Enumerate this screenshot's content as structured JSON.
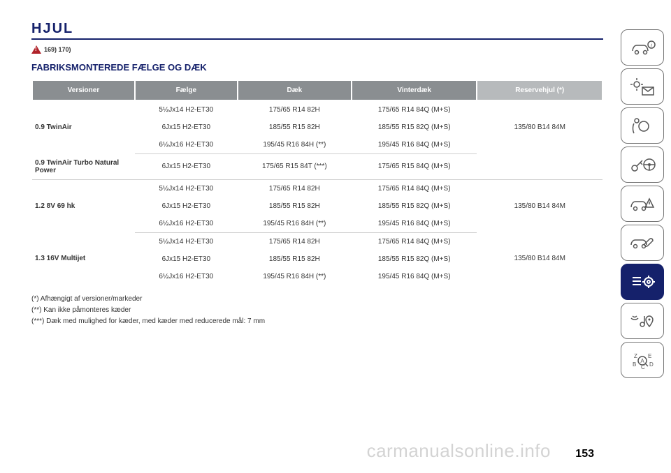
{
  "colors": {
    "primary": "#15216b",
    "header_bg": "#8a8e91",
    "header_bg_light": "#b7babc",
    "header_text": "#ffffff",
    "body_text": "#333333",
    "warn": "#b0232a",
    "divider": "#cfcfcf",
    "watermark": "rgba(130,130,130,0.35)"
  },
  "page_title": "HJUL",
  "warn_refs": "169) 170)",
  "section_heading": "FABRIKSMONTEREDE FÆLGE OG DÆK",
  "table": {
    "columns": [
      {
        "label": "Versioner",
        "width": "18%"
      },
      {
        "label": "Fælge",
        "width": "18%"
      },
      {
        "label": "Dæk",
        "width": "20%"
      },
      {
        "label": "Vinterdæk",
        "width": "22%"
      },
      {
        "label": "Reservehjul (*)",
        "width": "22%",
        "light": true
      }
    ],
    "groups": [
      {
        "version": "0.9 TwinAir",
        "rows": [
          {
            "rim": "5½Jx14 H2-ET30",
            "tyre": "175/65 R14 82H",
            "winter": "175/65 R14 84Q (M+S)"
          },
          {
            "rim": "6Jx15 H2-ET30",
            "tyre": "185/55 R15 82H",
            "winter": "185/55 R15 82Q (M+S)"
          },
          {
            "rim": "6½Jx16 H2-ET30",
            "tyre": "195/45 R16 84H (**)",
            "winter": "195/45 R16 84Q (M+S)"
          }
        ],
        "spare": "135/80 B14 84M"
      },
      {
        "version": "0.9 TwinAir Turbo Natural Power",
        "rows": [
          {
            "rim": "6Jx15 H2-ET30",
            "tyre": "175/65 R15 84T (***)",
            "winter": "175/65 R15 84Q (M+S)"
          }
        ],
        "spare": ""
      },
      {
        "version": "1.2 8V 69 hk",
        "rows": [
          {
            "rim": "5½Jx14 H2-ET30",
            "tyre": "175/65 R14 82H",
            "winter": "175/65 R14 84Q (M+S)"
          },
          {
            "rim": "6Jx15 H2-ET30",
            "tyre": "185/55 R15 82H",
            "winter": "185/55 R15 82Q (M+S)"
          },
          {
            "rim": "6½Jx16 H2-ET30",
            "tyre": "195/45 R16 84H (**)",
            "winter": "195/45 R16 84Q (M+S)"
          }
        ],
        "spare": "135/80 B14 84M"
      },
      {
        "version": "1.3 16V Multijet",
        "rows": [
          {
            "rim": "5½Jx14 H2-ET30",
            "tyre": "175/65 R14 82H",
            "winter": "175/65 R14 84Q (M+S)"
          },
          {
            "rim": "6Jx15 H2-ET30",
            "tyre": "185/55 R15 82H",
            "winter": "185/55 R15 82Q (M+S)"
          },
          {
            "rim": "6½Jx16 H2-ET30",
            "tyre": "195/45 R16 84H (**)",
            "winter": "195/45 R16 84Q (M+S)"
          }
        ],
        "spare": "135/80 B14 84M"
      }
    ]
  },
  "footnotes": [
    "(*) Afhængigt af versioner/markeder",
    "(**) Kan ikke påmonteres kæder",
    "(***) Dæk med mulighed for kæder, med kæder med reducerede mål: 7 mm"
  ],
  "page_number": "153",
  "watermark": "carmanualsonline.info",
  "sidebar": {
    "active_index": 6,
    "items": [
      {
        "name": "intro-icon"
      },
      {
        "name": "dashboard-icon"
      },
      {
        "name": "safety-icon"
      },
      {
        "name": "starting-icon"
      },
      {
        "name": "warning-icon"
      },
      {
        "name": "service-icon"
      },
      {
        "name": "techdata-icon"
      },
      {
        "name": "multimedia-icon"
      },
      {
        "name": "index-icon"
      }
    ]
  }
}
